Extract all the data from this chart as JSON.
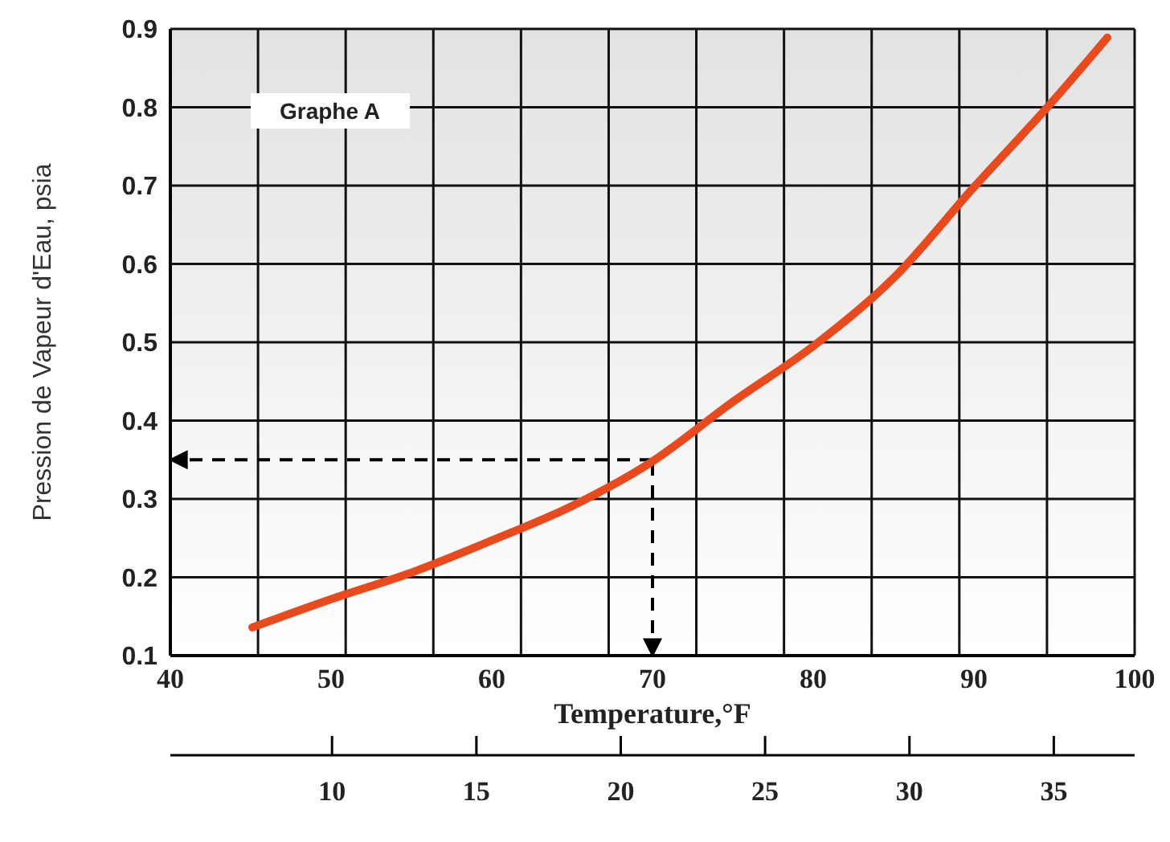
{
  "chart_data": {
    "type": "line",
    "xlabel": "Temperature,°F",
    "ylabel": "Pression de Vapeur d'Eau, psia",
    "annotations": [
      "Graphe A"
    ],
    "x": [
      45.1,
      50,
      55,
      60,
      65,
      70,
      75,
      80,
      85,
      90,
      95,
      98.3
    ],
    "series": [
      {
        "color": "#e8491d",
        "values": [
          0.136,
          0.172,
          0.206,
          0.247,
          0.291,
          0.348,
          0.424,
          0.495,
          0.582,
          0.698,
          0.81,
          0.889
        ]
      }
    ],
    "xlim": [
      40,
      100
    ],
    "xticks": [
      40,
      50,
      60,
      70,
      80,
      90,
      100
    ],
    "ylim": [
      0.1,
      0.9
    ],
    "yticks": [
      0.1,
      0.2,
      0.3,
      0.4,
      0.5,
      0.6,
      0.7,
      0.8,
      0.9
    ],
    "x2lim": [
      4.4,
      37.8
    ],
    "x2ticks": [
      10,
      15,
      20,
      25,
      30,
      35
    ],
    "ref_lines": [
      {
        "axis": "x",
        "value": 70,
        "color": "#000000",
        "line_style": "dashed"
      },
      {
        "axis": "y",
        "value": 0.35,
        "color": "#000000",
        "line_style": "dashed"
      }
    ],
    "grid": true,
    "line_style": "solid"
  }
}
